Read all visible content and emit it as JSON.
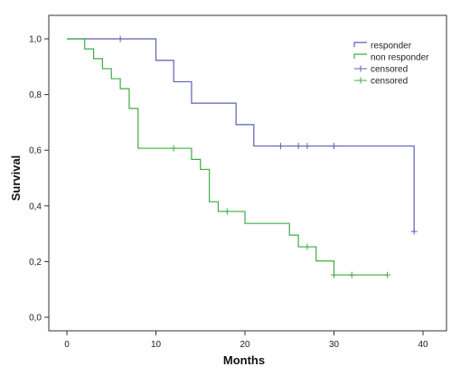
{
  "chart_data": {
    "type": "line",
    "title": "",
    "xlabel": "Months",
    "ylabel": "Survival",
    "xlim": [
      0,
      40
    ],
    "ylim": [
      0,
      1
    ],
    "xticks": [
      "0",
      "10",
      "20",
      "30",
      "40"
    ],
    "yticks": [
      "0,0",
      "0,2",
      "0,4",
      "0,6",
      "0,8",
      "1,0"
    ],
    "grid": false,
    "legend_position": "top-right",
    "series": [
      {
        "name": "responder",
        "color": "#5b62b3",
        "steps": [
          [
            0,
            1.0
          ],
          [
            10,
            0.923
          ],
          [
            12,
            0.846
          ],
          [
            14,
            0.769
          ],
          [
            19,
            0.692
          ],
          [
            21,
            0.615
          ],
          [
            39,
            0.308
          ]
        ],
        "end_x": 39,
        "censored_x": [
          6,
          24,
          26,
          27,
          30,
          39
        ],
        "censored_name": "censored"
      },
      {
        "name": "non responder",
        "color": "#3dad44",
        "steps": [
          [
            0,
            1.0
          ],
          [
            2,
            0.964
          ],
          [
            3,
            0.929
          ],
          [
            4,
            0.893
          ],
          [
            5,
            0.857
          ],
          [
            6,
            0.821
          ],
          [
            7,
            0.75
          ],
          [
            8,
            0.607
          ],
          [
            14,
            0.567
          ],
          [
            15,
            0.531
          ],
          [
            16,
            0.415
          ],
          [
            17,
            0.38
          ],
          [
            20,
            0.337
          ],
          [
            25,
            0.295
          ],
          [
            26,
            0.253
          ],
          [
            28,
            0.202
          ],
          [
            30,
            0.152
          ]
        ],
        "end_x": 36,
        "censored_x": [
          12,
          18,
          27,
          30,
          32,
          36
        ],
        "censored_name": "censored"
      }
    ]
  }
}
